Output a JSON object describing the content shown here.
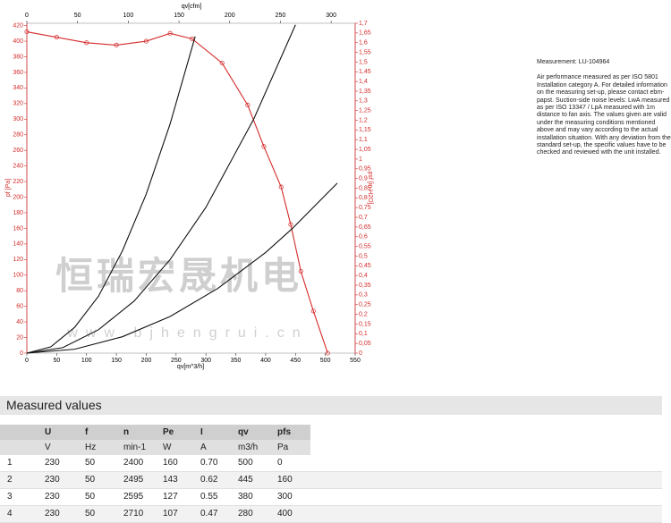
{
  "chart_data": {
    "type": "line",
    "xlabel": "qv[m^3/h]",
    "x2label": "qv[cfm]",
    "ylabel": "pf [Pa]",
    "y2label": "psf [in H2O]",
    "xlim": [
      0,
      550
    ],
    "xticks": [
      0,
      50,
      100,
      150,
      200,
      250,
      300,
      350,
      400,
      450,
      500,
      550
    ],
    "x2lim": [
      0,
      323.7
    ],
    "x2ticks": [
      0,
      50,
      100,
      150,
      200,
      250,
      300
    ],
    "ylim": [
      0,
      423
    ],
    "yticks": [
      0,
      20,
      40,
      60,
      80,
      100,
      120,
      140,
      160,
      180,
      200,
      220,
      240,
      260,
      280,
      300,
      320,
      340,
      360,
      380,
      400,
      420
    ],
    "y2lim": [
      0,
      1.7
    ],
    "y2ticks": [
      0,
      {
        "value": 0.05,
        "label": "0,05"
      },
      {
        "value": 0.1,
        "label": "0,1"
      },
      {
        "value": 0.15,
        "label": "0,15"
      },
      {
        "value": 0.2,
        "label": "0,2"
      },
      {
        "value": 0.25,
        "label": "0,25"
      },
      {
        "value": 0.3,
        "label": "0,3"
      },
      {
        "value": 0.35,
        "label": "0,35"
      },
      {
        "value": 0.4,
        "label": "0,4"
      },
      {
        "value": 0.45,
        "label": "0,45"
      },
      {
        "value": 0.5,
        "label": "0,5"
      },
      {
        "value": 0.55,
        "label": "0,55"
      },
      {
        "value": 0.6,
        "label": "0,6"
      },
      {
        "value": 0.65,
        "label": "0,65"
      },
      {
        "value": 0.7,
        "label": "0,7"
      },
      {
        "value": 0.75,
        "label": "0,75"
      },
      {
        "value": 0.8,
        "label": "0,8"
      },
      {
        "value": 0.85,
        "label": "0,85"
      },
      {
        "value": 0.9,
        "label": "0,9"
      },
      {
        "value": 0.95,
        "label": "0,95"
      },
      1,
      {
        "value": 1.05,
        "label": "1,05"
      },
      {
        "value": 1.1,
        "label": "1,1"
      },
      {
        "value": 1.15,
        "label": "1,15"
      },
      {
        "value": 1.2,
        "label": "1,2"
      },
      {
        "value": 1.25,
        "label": "1,25"
      },
      {
        "value": 1.3,
        "label": "1,3"
      },
      {
        "value": 1.35,
        "label": "1,35"
      },
      {
        "value": 1.4,
        "label": "1,4"
      },
      {
        "value": 1.45,
        "label": "1,45"
      },
      {
        "value": 1.5,
        "label": "1,5"
      },
      {
        "value": 1.55,
        "label": "1,55"
      },
      {
        "value": 1.6,
        "label": "1,6"
      },
      {
        "value": 1.65,
        "label": "1,65"
      },
      {
        "value": 1.7,
        "label": "1,7"
      }
    ],
    "grid": false,
    "series": [
      {
        "color": "#d42a2a",
        "markers": true,
        "x": [
          0,
          50,
          100,
          150,
          200,
          240,
          277,
          327,
          370,
          397,
          426,
          442,
          459,
          480,
          504
        ],
        "values": [
          412,
          405,
          398,
          395,
          400,
          410,
          403,
          372,
          318,
          265,
          213,
          165,
          105,
          54,
          0
        ]
      },
      {
        "color": "#111111",
        "markers": false,
        "x": [
          0,
          40,
          80,
          120,
          160,
          200,
          240,
          282
        ],
        "values": [
          0,
          8,
          33,
          73,
          131,
          204,
          294,
          406
        ]
      },
      {
        "color": "#111111",
        "markers": false,
        "x": [
          0,
          60,
          120,
          180,
          240,
          300,
          380,
          450
        ],
        "values": [
          0,
          7,
          30,
          67,
          120,
          187,
          300,
          421
        ]
      },
      {
        "color": "#111111",
        "markers": false,
        "x": [
          0,
          80,
          160,
          240,
          320,
          400,
          445,
          520
        ],
        "values": [
          0,
          5,
          21,
          47,
          83,
          129,
          160,
          218
        ]
      }
    ],
    "watermark": "恒瑞宏晟机电",
    "watermark_url": "www.bjhengrui.cn"
  },
  "notes": {
    "measurement": "Measurement: LU-104964",
    "text": "Air performance measured as per ISO 5801 Installation category A. For detailed information on the measuring set-up, please contact ebm-papst. Suction-side noise levels: LwA measured as per ISO 13347 / LpA measured with 1m distance to fan axis. The values given are valid under the measuring conditions mentioned above and may vary according to the actual installation situation. With any deviation from the standard set-up, the specific values have to be checked and reviewed with the unit installed."
  },
  "table": {
    "title": "Measured values",
    "header": [
      "U",
      "f",
      "n",
      "Pe",
      "I",
      "qv",
      "pfs"
    ],
    "units": [
      "V",
      "Hz",
      "min-1",
      "W",
      "A",
      "m3/h",
      "Pa"
    ],
    "rows": [
      [
        "1",
        "230",
        "50",
        "2400",
        "160",
        "0.70",
        "500",
        "0"
      ],
      [
        "2",
        "230",
        "50",
        "2495",
        "143",
        "0.62",
        "445",
        "160"
      ],
      [
        "3",
        "230",
        "50",
        "2595",
        "127",
        "0.55",
        "380",
        "300"
      ],
      [
        "4",
        "230",
        "50",
        "2710",
        "107",
        "0.47",
        "280",
        "400"
      ]
    ]
  }
}
